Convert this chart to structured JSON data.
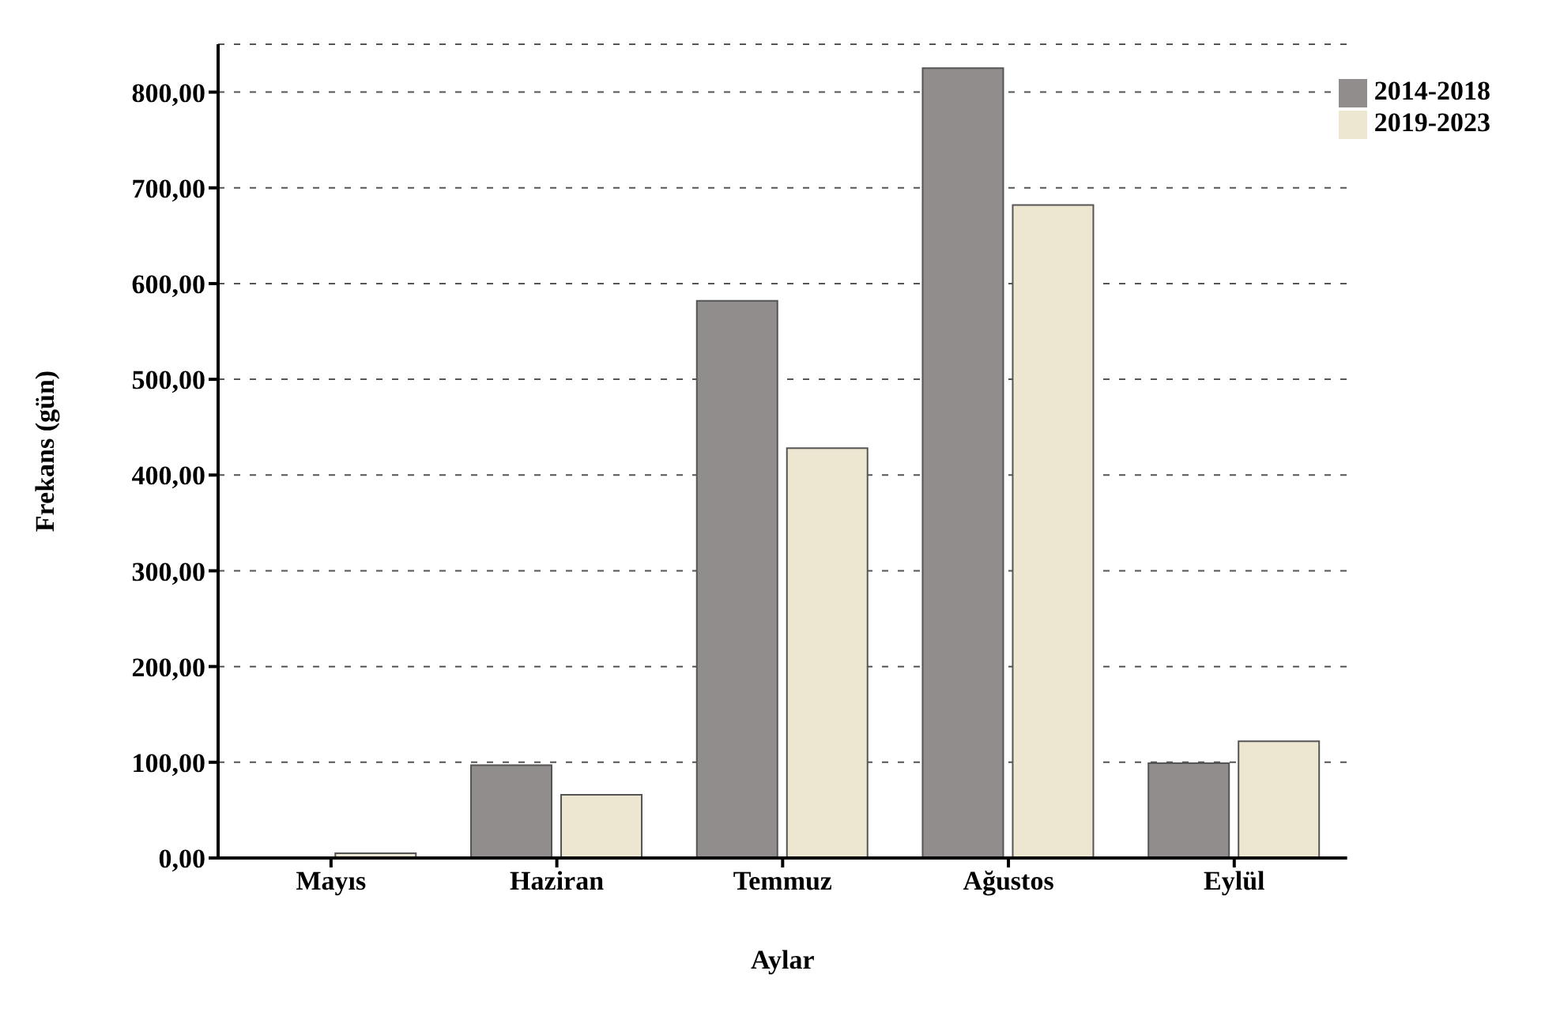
{
  "chart_data": {
    "type": "bar",
    "xlabel": "Aylar",
    "ylabel": "Frekans (gün)",
    "categories": [
      "Mayıs",
      "Haziran",
      "Temmuz",
      "Ağustos",
      "Eylül"
    ],
    "series": [
      {
        "name": "2014-2018",
        "color": "#918d8d",
        "values": [
          0,
          97,
          582,
          825,
          99
        ]
      },
      {
        "name": "2019-2023",
        "color": "#ede6d1",
        "values": [
          5,
          66,
          428,
          682,
          122
        ]
      }
    ],
    "ylim": [
      0,
      850
    ],
    "yticks": [
      {
        "value": 0,
        "label": "0,00"
      },
      {
        "value": 100,
        "label": "100,00"
      },
      {
        "value": 200,
        "label": "200,00"
      },
      {
        "value": 300,
        "label": "300,00"
      },
      {
        "value": 400,
        "label": "400,00"
      },
      {
        "value": 500,
        "label": "500,00"
      },
      {
        "value": 600,
        "label": "600,00"
      },
      {
        "value": 700,
        "label": "700,00"
      },
      {
        "value": 800,
        "label": "800,00"
      }
    ],
    "grid": "y",
    "legend": "top right"
  }
}
